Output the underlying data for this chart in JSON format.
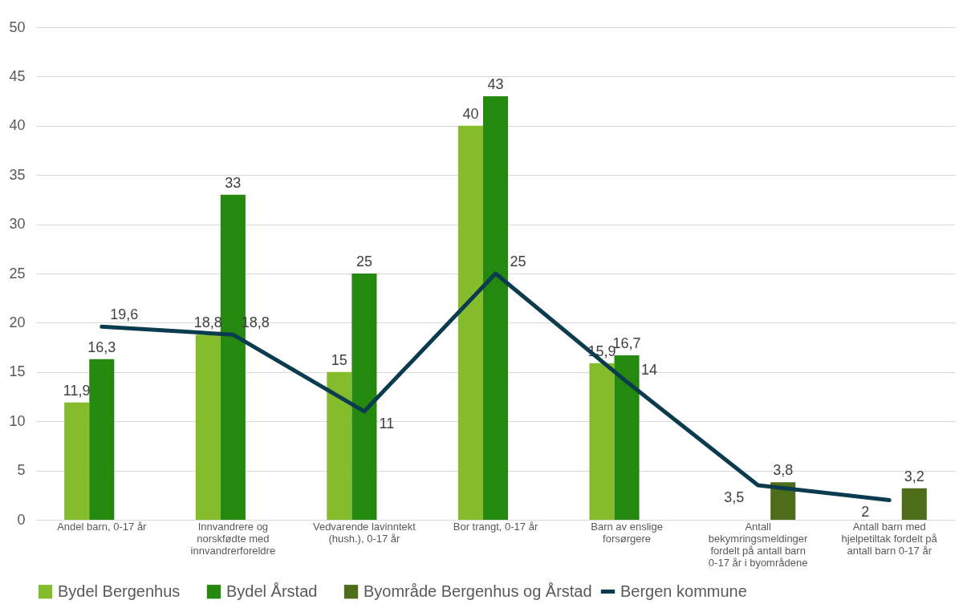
{
  "chart_data": {
    "type": "bar",
    "categories": [
      "Andel barn, 0-17 år",
      "Innvandrere og norskfødte med innvandrerforeldre",
      "Vedvarende lavinntekt (hush.), 0-17 år",
      "Bor trangt, 0-17 år",
      "Barn av enslige forsørgere",
      "Antall bekymringsmeldinger fordelt på antall barn 0-17 år i byområdene",
      "Antall barn med hjelpetiltak fordelt på antall barn 0-17 år"
    ],
    "series": [
      {
        "name": "Bydel Bergenhus",
        "color": "#84bc2c",
        "values": [
          11.9,
          18.8,
          15,
          40,
          15.9,
          null,
          null
        ],
        "value_labels": [
          "11,9",
          "18,8",
          "15",
          "40",
          "15,9",
          null,
          null
        ]
      },
      {
        "name": "Bydel Årstad",
        "color": "#26890f",
        "values": [
          16.3,
          33,
          25,
          43,
          16.7,
          null,
          null
        ],
        "value_labels": [
          "16,3",
          "33",
          "25",
          "43",
          "16,7",
          null,
          null
        ]
      },
      {
        "name": "Byområde Bergenhus og Årstad",
        "color": "#4e6d1a",
        "values": [
          null,
          null,
          null,
          null,
          null,
          3.8,
          3.2
        ],
        "value_labels": [
          null,
          null,
          null,
          null,
          null,
          "3,8",
          "3,2"
        ]
      },
      {
        "name": "Bergen kommune",
        "color": "#0b3b4f",
        "type": "line",
        "values": [
          19.6,
          18.8,
          11,
          25,
          14,
          3.5,
          2
        ],
        "value_labels": [
          "19,6",
          "18,8",
          "11",
          "25",
          "14",
          "3,5",
          "2"
        ]
      }
    ],
    "ylim": [
      0,
      50
    ],
    "yticks": [
      0,
      5,
      10,
      15,
      20,
      25,
      30,
      35,
      40,
      45,
      50
    ],
    "grid": "y",
    "legend": "bottom"
  }
}
